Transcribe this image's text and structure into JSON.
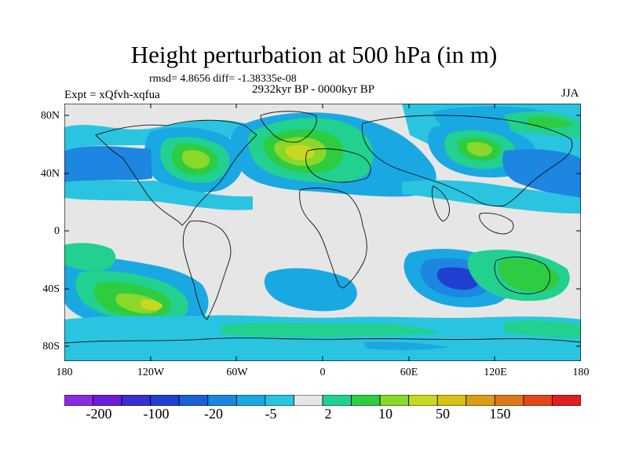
{
  "title": "Height perturbation at 500 hPa (in m)",
  "stats": "rmsd= 4.8656 diff= -1.38335e-08",
  "period": "2932kyr BP - 0000kyr BP",
  "expt": "Expt = xQfvh-xqfua",
  "season": "JJA",
  "lat_ticks": [
    "80N",
    "40N",
    "0",
    "40S",
    "80S"
  ],
  "lon_ticks": [
    "180",
    "120W",
    "60W",
    "0",
    "60E",
    "120E",
    "180"
  ],
  "colorbar": {
    "labels": [
      "-200",
      "-100",
      "-20",
      "-5",
      "2",
      "10",
      "50",
      "150"
    ],
    "colors": [
      "#8a2be2",
      "#6a1ed8",
      "#3a2fd0",
      "#1f3fd0",
      "#1a60d8",
      "#1c86e0",
      "#1aa8e2",
      "#2ac4e0",
      "#e6e6e6",
      "#22d090",
      "#2ecc40",
      "#8ad82a",
      "#c8d820",
      "#d8c018",
      "#d89e18",
      "#dc7818",
      "#e04818",
      "#e01e1e"
    ]
  }
}
